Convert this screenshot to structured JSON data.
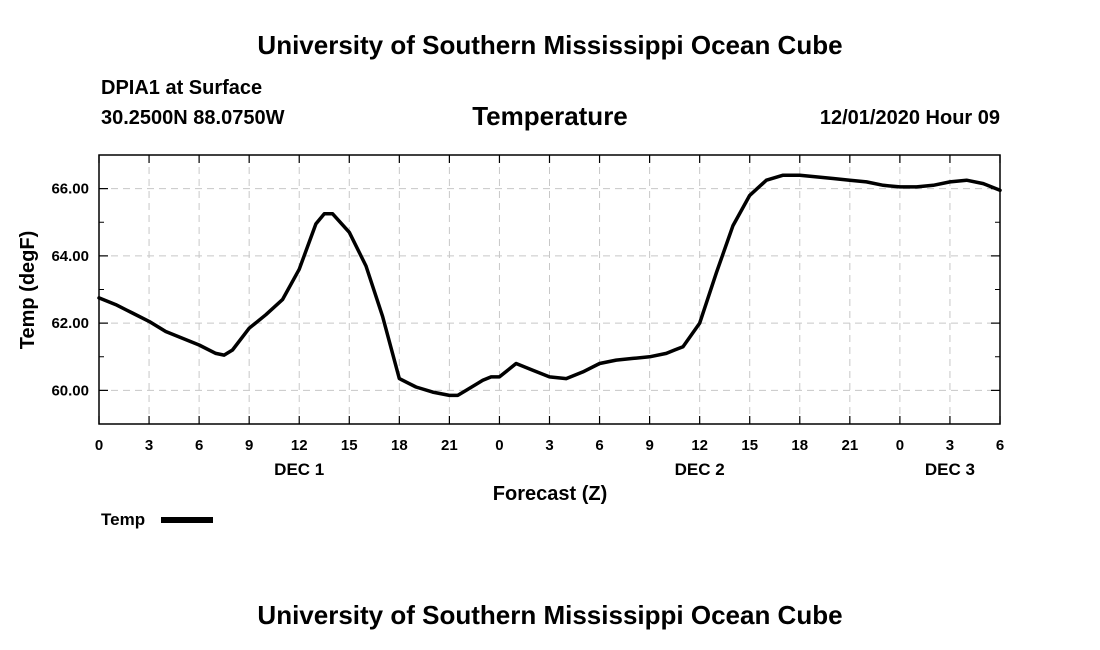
{
  "page": {
    "title_top": "University of Southern Mississippi Ocean Cube",
    "title_bottom": "University of Southern Mississippi Ocean Cube",
    "station": "DPIA1 at Surface",
    "coords": "30.2500N 88.0750W",
    "datetime": "12/01/2020 Hour 09"
  },
  "chart_data": {
    "type": "line",
    "title": "Temperature",
    "xlabel": "Forecast (Z)",
    "ylabel": "Temp (degF)",
    "xlim": [
      0,
      54
    ],
    "ylim": [
      59.0,
      67.0
    ],
    "x_tick_values": [
      0,
      3,
      6,
      9,
      12,
      15,
      18,
      21,
      24,
      27,
      30,
      33,
      36,
      39,
      42,
      45,
      48,
      51,
      54
    ],
    "x_tick_labels": [
      "0",
      "3",
      "6",
      "9",
      "12",
      "15",
      "18",
      "21",
      "0",
      "3",
      "6",
      "9",
      "12",
      "15",
      "18",
      "21",
      "0",
      "3",
      "6"
    ],
    "y_tick_values": [
      60,
      62,
      64,
      66
    ],
    "y_tick_labels": [
      "60.00",
      "62.00",
      "64.00",
      "66.00"
    ],
    "day_labels": [
      {
        "x": 12,
        "label": "DEC 1"
      },
      {
        "x": 36,
        "label": "DEC 2"
      },
      {
        "x": 51,
        "label": "DEC 3"
      }
    ],
    "grid": true,
    "legend": [
      {
        "name": "Temp",
        "color": "#000000",
        "position": "bottom-left"
      }
    ],
    "series": [
      {
        "name": "Temp",
        "x": [
          0,
          1,
          2,
          3,
          4,
          5,
          6,
          7,
          7.5,
          8,
          9,
          10,
          11,
          12,
          13,
          13.5,
          14,
          15,
          16,
          17,
          18,
          19,
          20,
          21,
          21.5,
          22,
          23,
          23.5,
          24,
          25,
          26,
          27,
          28,
          29,
          30,
          31,
          32,
          33,
          34,
          34.5,
          35,
          36,
          37,
          38,
          39,
          40,
          41,
          42,
          43,
          44,
          45,
          46,
          47,
          48,
          49,
          50,
          51,
          52,
          53,
          54
        ],
        "values": [
          62.75,
          62.55,
          62.3,
          62.05,
          61.75,
          61.55,
          61.35,
          61.1,
          61.05,
          61.2,
          61.85,
          62.25,
          62.7,
          63.6,
          64.95,
          65.25,
          65.25,
          64.7,
          63.7,
          62.2,
          60.35,
          60.1,
          59.95,
          59.85,
          59.85,
          60.0,
          60.3,
          60.4,
          60.4,
          60.8,
          60.6,
          60.4,
          60.35,
          60.55,
          60.8,
          60.9,
          60.95,
          61.0,
          61.1,
          61.2,
          61.3,
          62.0,
          63.5,
          64.9,
          65.8,
          66.25,
          66.4,
          66.4,
          66.35,
          66.3,
          66.25,
          66.2,
          66.1,
          66.05,
          66.05,
          66.1,
          66.2,
          66.25,
          66.15,
          65.95
        ]
      }
    ]
  }
}
